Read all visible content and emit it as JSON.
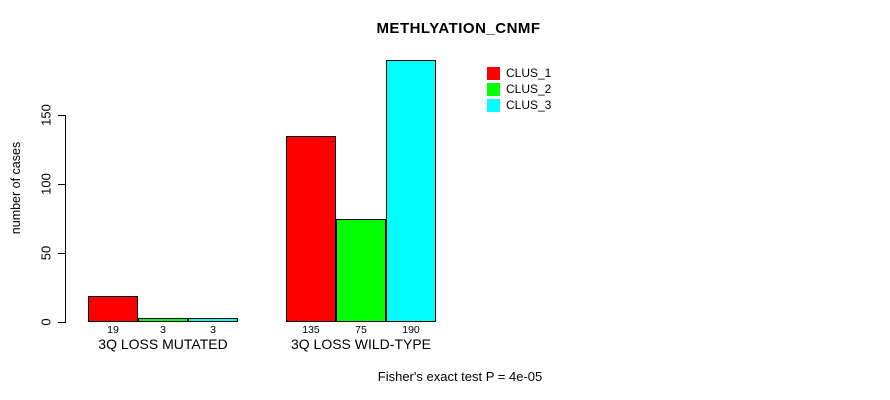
{
  "title": "METHLYATION_CNMF",
  "footer": "Fisher's exact test P = 4e-05",
  "y_axis": {
    "label": "number of cases",
    "tick_labels": [
      "0",
      "50",
      "100",
      "150"
    ]
  },
  "legend": {
    "items": [
      {
        "label": "CLUS_1",
        "color": "#ff0000"
      },
      {
        "label": "CLUS_2",
        "color": "#00ff00"
      },
      {
        "label": "CLUS_3",
        "color": "#00ffff"
      }
    ]
  },
  "chart_data": {
    "type": "bar",
    "title": "METHLYATION_CNMF",
    "categories": [
      "3Q LOSS MUTATED",
      "3Q LOSS WILD-TYPE"
    ],
    "series": [
      {
        "name": "CLUS_1",
        "color": "#ff0000",
        "values": [
          19,
          135
        ]
      },
      {
        "name": "CLUS_2",
        "color": "#00ff00",
        "values": [
          3,
          75
        ]
      },
      {
        "name": "CLUS_3",
        "color": "#00ffff",
        "values": [
          3,
          190
        ]
      }
    ],
    "bar_value_labels": [
      [
        19,
        3,
        3
      ],
      [
        135,
        75,
        190
      ]
    ],
    "xlabel": "",
    "ylabel": "number of cases",
    "ylim": [
      0,
      190
    ],
    "yticks": [
      0,
      50,
      100,
      150
    ],
    "grid": false,
    "bar_border_color": "#000000",
    "legend_position": "inside-top-right",
    "annotation": "Fisher's exact test P = 4e-05"
  }
}
